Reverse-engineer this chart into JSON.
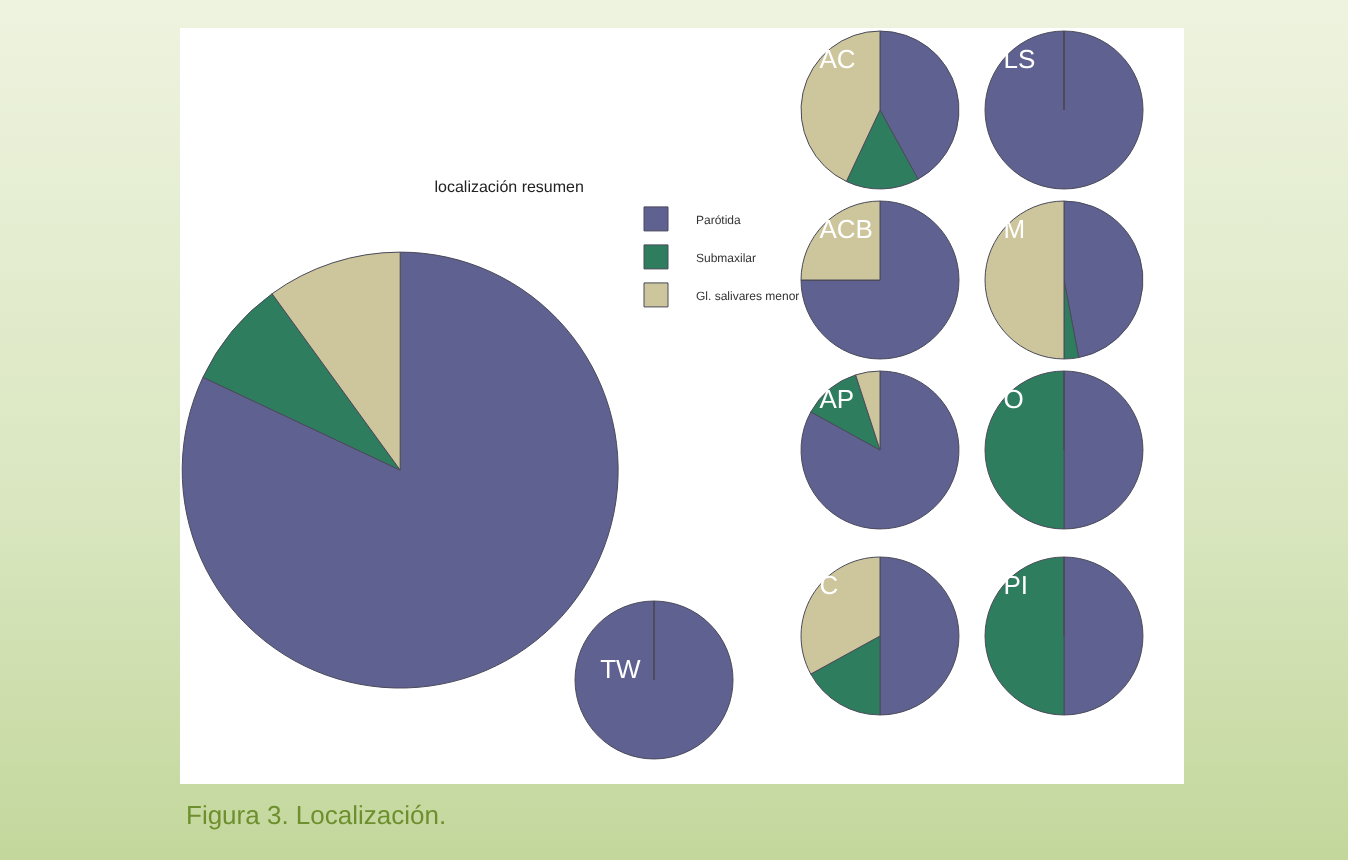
{
  "chart_data": [
    {
      "type": "pie",
      "title": "localización resumen",
      "categories": [
        "Parótida",
        "Submaxilar",
        "Gl. salivares menor"
      ],
      "values": [
        82,
        8,
        10
      ],
      "colors": [
        "#5f6191",
        "#2f7d5f",
        "#cdc59b"
      ],
      "legend": "top right",
      "annotations": [
        "Figura 3. Localización."
      ]
    },
    {
      "type": "pie",
      "title": "AC",
      "values": [
        42,
        15,
        43
      ],
      "colors": [
        "#5f6191",
        "#2f7d5f",
        "#cdc59b"
      ]
    },
    {
      "type": "pie",
      "title": "LS",
      "values": [
        100,
        0,
        0
      ],
      "colors": [
        "#5f6191",
        "#2f7d5f",
        "#cdc59b"
      ]
    },
    {
      "type": "pie",
      "title": "ACB",
      "values": [
        75,
        0,
        25
      ],
      "colors": [
        "#5f6191",
        "#2f7d5f",
        "#cdc59b"
      ]
    },
    {
      "type": "pie",
      "title": "M",
      "values": [
        47,
        3,
        50
      ],
      "colors": [
        "#5f6191",
        "#2f7d5f",
        "#cdc59b"
      ]
    },
    {
      "type": "pie",
      "title": "AP",
      "values": [
        83,
        12,
        5
      ],
      "colors": [
        "#5f6191",
        "#2f7d5f",
        "#cdc59b"
      ]
    },
    {
      "type": "pie",
      "title": "O",
      "values": [
        50,
        50,
        0
      ],
      "colors": [
        "#5f6191",
        "#2f7d5f",
        "#cdc59b"
      ]
    },
    {
      "type": "pie",
      "title": "C",
      "values": [
        50,
        17,
        33
      ],
      "colors": [
        "#5f6191",
        "#2f7d5f",
        "#cdc59b"
      ]
    },
    {
      "type": "pie",
      "title": "PI",
      "values": [
        50,
        50,
        0
      ],
      "colors": [
        "#5f6191",
        "#2f7d5f",
        "#cdc59b"
      ]
    },
    {
      "type": "pie",
      "title": "TW",
      "values": [
        100,
        0,
        0
      ],
      "colors": [
        "#5f6191",
        "#2f7d5f",
        "#cdc59b"
      ]
    }
  ]
}
